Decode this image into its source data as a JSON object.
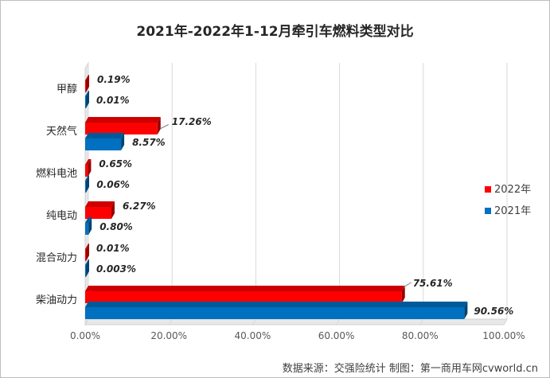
{
  "chart_data": {
    "type": "bar",
    "orientation": "horizontal",
    "style": "3d",
    "title": "2021年-2022年1-12月牵引车燃料类型对比",
    "categories": [
      "甲醇",
      "天然气",
      "燃料电池",
      "纯电动",
      "混合动力",
      "柴油动力"
    ],
    "series": [
      {
        "name": "2022年",
        "color": "#ff0000",
        "values": [
          0.19,
          17.26,
          0.65,
          6.27,
          0.01,
          75.61
        ],
        "labels": [
          "0.19%",
          "17.26%",
          "0.65%",
          "6.27%",
          "0.01%",
          "75.61%"
        ]
      },
      {
        "name": "2021年",
        "color": "#0070c0",
        "values": [
          0.01,
          8.57,
          0.06,
          0.8,
          0.003,
          90.56
        ],
        "labels": [
          "0.01%",
          "8.57%",
          "0.06%",
          "0.80%",
          "0.003%",
          "90.56%"
        ]
      }
    ],
    "x_range": [
      0,
      100
    ],
    "x_ticks": [
      "0.00%",
      "20.00%",
      "40.00%",
      "60.00%",
      "80.00%",
      "100.00%"
    ],
    "grid": true,
    "legend_position": "right"
  },
  "footer": {
    "source": "数据来源：交强险统计    制图：第一商用车网cvworld.cn"
  }
}
